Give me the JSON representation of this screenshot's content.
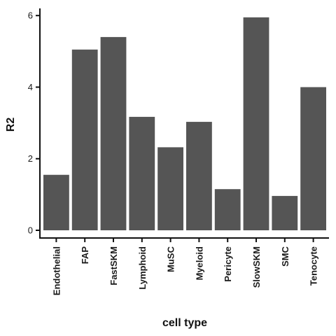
{
  "chart_data": {
    "type": "bar",
    "title": "",
    "xlabel": "cell type",
    "ylabel": "R2",
    "ylim": [
      0,
      6.2
    ],
    "yticks": [
      0,
      2,
      4,
      6
    ],
    "grid": false,
    "legend": "none",
    "bar_color": "#555555",
    "axis_color": "#111111",
    "categories": [
      "Endothelial",
      "FAP",
      "FastSKM",
      "Lymphoid",
      "MuSC",
      "Myeloid",
      "Pericyte",
      "SlowSKM",
      "SMC",
      "Tenocyte"
    ],
    "values": [
      1.55,
      5.05,
      5.4,
      3.17,
      2.32,
      3.03,
      1.15,
      5.95,
      0.96,
      4.0
    ]
  }
}
